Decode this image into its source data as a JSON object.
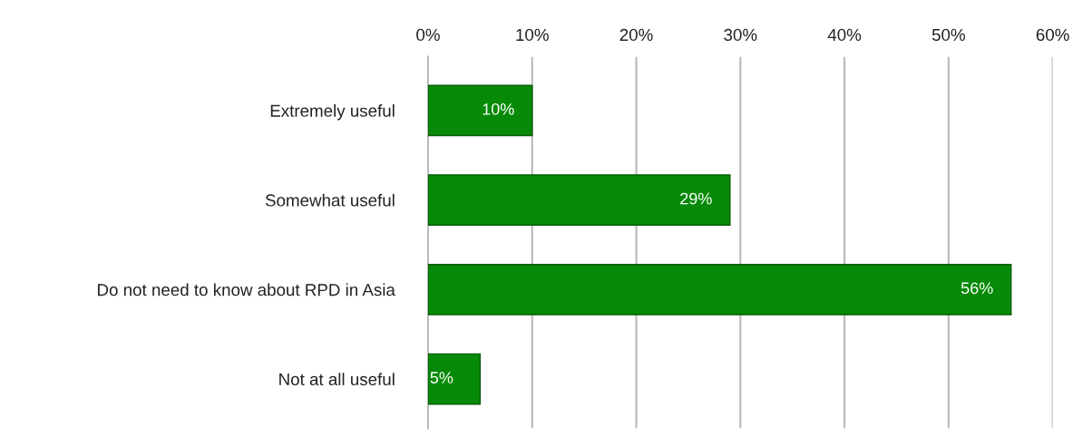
{
  "chart_data": {
    "type": "bar",
    "orientation": "horizontal",
    "categories": [
      "Extremely useful",
      "Somewhat useful",
      "Do not need to know about RPD in Asia",
      "Not at all useful"
    ],
    "values": [
      10,
      29,
      56,
      5
    ],
    "color": "#078a07",
    "value_labels": [
      "10%",
      "29%",
      "56%",
      "5%"
    ],
    "xlim": [
      0,
      60
    ],
    "xticks": [
      {
        "value": 0,
        "label": "0%"
      },
      {
        "value": 10,
        "label": "10%"
      },
      {
        "value": 20,
        "label": "20%"
      },
      {
        "value": 30,
        "label": "30%"
      },
      {
        "value": 40,
        "label": "40%"
      },
      {
        "value": 50,
        "label": "50%"
      },
      {
        "value": 60,
        "label": "60%"
      }
    ],
    "grid": "x",
    "legend": false
  }
}
